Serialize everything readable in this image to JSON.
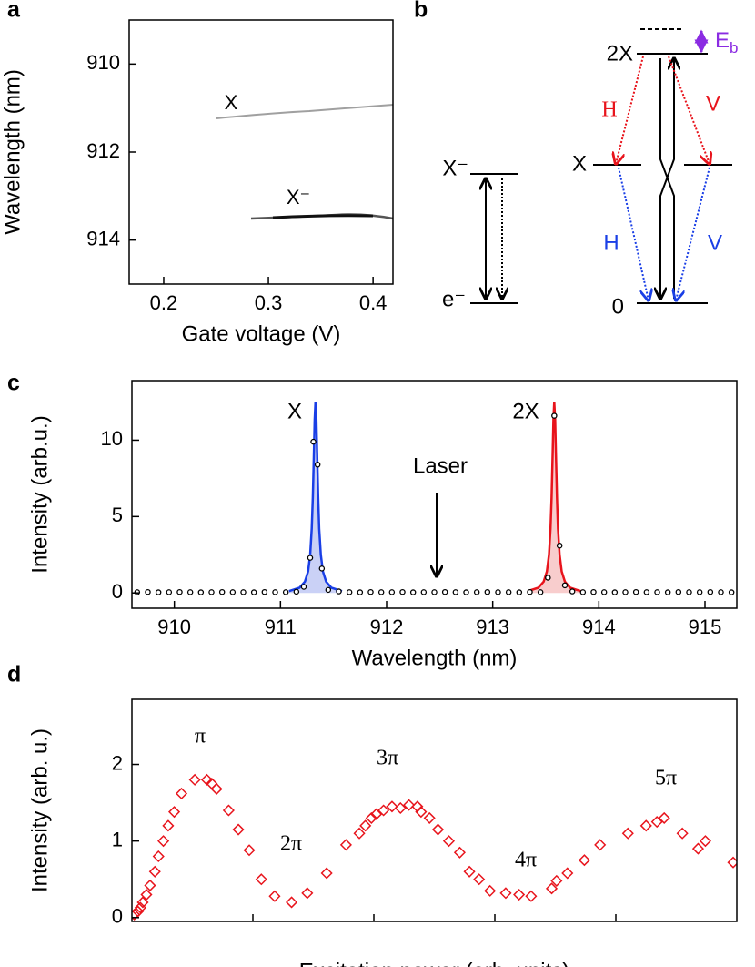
{
  "panel_labels": [
    "a",
    "b",
    "c",
    "d"
  ],
  "diagram": {
    "levels": [
      "X⁻",
      "e⁻",
      "2X",
      "X",
      "0"
    ],
    "binding_energy": {
      "symbol": "E",
      "subscript": "b"
    },
    "polarizations": [
      "H",
      "V",
      "H",
      "V"
    ]
  },
  "chart_data": [
    {
      "type": "image",
      "xlabel": "Gate voltage (V)",
      "ylabel": "Wavelength (nm)",
      "xlim": [
        0.167,
        0.419
      ],
      "xticks": [
        0.2,
        0.3,
        0.4
      ],
      "ylim": [
        909,
        915
      ],
      "yticks": [
        910,
        912,
        914
      ],
      "y_inverted": true,
      "annotations": [
        "X",
        "X⁻"
      ]
    },
    {
      "type": "scatter",
      "xlabel": "Wavelength (nm)",
      "ylabel": "Intensity (arb.u.)",
      "xlim": [
        909.6,
        915.3
      ],
      "xticks": [
        910,
        911,
        912,
        913,
        914,
        915
      ],
      "ylim": [
        -1,
        13.9
      ],
      "yticks": [
        0,
        5,
        10
      ],
      "annotations": [
        "X",
        "2X",
        "Laser"
      ],
      "series": [
        {
          "marker": "line",
          "color": "#1a3fe6",
          "fill": "#b3bdf2",
          "x": [
            911.08,
            911.18,
            911.23,
            911.26,
            911.28,
            911.295,
            911.305,
            911.315,
            911.322,
            911.33,
            911.338,
            911.345,
            911.355,
            911.365,
            911.38,
            911.4,
            911.43,
            911.48,
            911.58
          ],
          "values": [
            0.12,
            0.34,
            0.74,
            1.41,
            2.5,
            4.22,
            6.25,
            9.19,
            11.34,
            12.5,
            11.34,
            9.19,
            6.25,
            4.22,
            2.5,
            1.41,
            0.74,
            0.34,
            0.12
          ]
        },
        {
          "marker": "line",
          "color": "#e8141c",
          "fill": "#f5b8b8",
          "x": [
            913.33,
            913.43,
            913.48,
            913.51,
            913.53,
            913.545,
            913.555,
            913.565,
            913.572,
            913.58,
            913.588,
            913.595,
            913.605,
            913.615,
            913.63,
            913.65,
            913.68,
            913.73,
            913.83
          ],
          "values": [
            0.12,
            0.34,
            0.74,
            1.41,
            2.5,
            4.22,
            6.25,
            9.19,
            11.34,
            12.5,
            11.34,
            9.19,
            6.25,
            4.22,
            2.5,
            1.41,
            0.74,
            0.34,
            0.12
          ]
        },
        {
          "marker": "circle",
          "color": "#000000",
          "x": [
            909.65,
            909.75,
            909.85,
            909.95,
            910.05,
            910.15,
            910.25,
            910.35,
            910.45,
            910.55,
            910.65,
            910.75,
            910.85,
            910.95,
            911.05,
            911.15,
            911.22,
            911.28,
            911.31,
            911.35,
            911.39,
            911.45,
            911.55,
            911.65,
            911.75,
            911.85,
            911.95,
            912.05,
            912.15,
            912.25,
            912.35,
            912.45,
            912.55,
            912.65,
            912.75,
            912.85,
            912.95,
            913.05,
            913.15,
            913.25,
            913.35,
            913.45,
            913.52,
            913.58,
            913.63,
            913.68,
            913.75,
            913.85,
            913.95,
            914.05,
            914.15,
            914.25,
            914.35,
            914.45,
            914.55,
            914.65,
            914.75,
            914.85,
            914.95,
            915.05,
            915.15,
            915.25
          ],
          "values": [
            0.05,
            0.06,
            0.04,
            0.05,
            0.06,
            0.05,
            0.04,
            0.05,
            0.06,
            0.05,
            0.05,
            0.04,
            0.06,
            0.05,
            0.05,
            0.08,
            0.4,
            2.3,
            9.9,
            8.4,
            1.6,
            0.2,
            0.1,
            0.05,
            0.04,
            0.06,
            0.05,
            0.05,
            0.06,
            0.04,
            0.05,
            0.05,
            0.06,
            0.05,
            0.04,
            0.05,
            0.06,
            0.05,
            0.05,
            0.04,
            0.06,
            0.05,
            1.0,
            11.6,
            3.1,
            0.5,
            0.1,
            0.05,
            0.06,
            0.05,
            0.04,
            0.05,
            0.06,
            0.05,
            0.05,
            0.04,
            0.06,
            0.05,
            0.05,
            0.06,
            0.05,
            0.04
          ]
        }
      ]
    },
    {
      "type": "scatter",
      "xlabel": "Excitation power (arb. units)",
      "ylabel": "Intensity (arb. u.)",
      "xlim": [
        0,
        5
      ],
      "ylim": [
        -0.05,
        2.85
      ],
      "yticks": [
        0,
        1,
        2
      ],
      "annotations": [
        "π",
        "2π",
        "3π",
        "4π",
        "5π"
      ],
      "series": [
        {
          "marker": "diamond",
          "color": "#e8141c",
          "x": [
            0.02,
            0.05,
            0.07,
            0.09,
            0.12,
            0.15,
            0.19,
            0.22,
            0.26,
            0.3,
            0.35,
            0.41,
            0.52,
            0.62,
            0.66,
            0.7,
            0.8,
            0.88,
            0.97,
            1.07,
            1.18,
            1.32,
            1.45,
            1.61,
            1.77,
            1.88,
            1.93,
            1.98,
            2.02,
            2.08,
            2.15,
            2.22,
            2.29,
            2.36,
            2.39,
            2.46,
            2.53,
            2.62,
            2.71,
            2.79,
            2.87,
            2.96,
            3.09,
            3.2,
            3.3,
            3.47,
            3.51,
            3.6,
            3.74,
            3.87,
            4.1,
            4.25,
            4.34,
            4.4,
            4.55,
            4.68,
            4.74,
            4.97
          ],
          "values": [
            0.04,
            0.08,
            0.13,
            0.2,
            0.3,
            0.42,
            0.6,
            0.8,
            1.0,
            1.2,
            1.38,
            1.62,
            1.8,
            1.8,
            1.75,
            1.68,
            1.4,
            1.15,
            0.88,
            0.5,
            0.28,
            0.2,
            0.32,
            0.58,
            0.95,
            1.1,
            1.2,
            1.3,
            1.35,
            1.4,
            1.45,
            1.43,
            1.47,
            1.45,
            1.38,
            1.3,
            1.15,
            1.0,
            0.85,
            0.6,
            0.5,
            0.35,
            0.32,
            0.3,
            0.28,
            0.38,
            0.48,
            0.58,
            0.75,
            0.95,
            1.1,
            1.2,
            1.25,
            1.3,
            1.1,
            0.9,
            1.0,
            0.72
          ]
        }
      ]
    }
  ]
}
